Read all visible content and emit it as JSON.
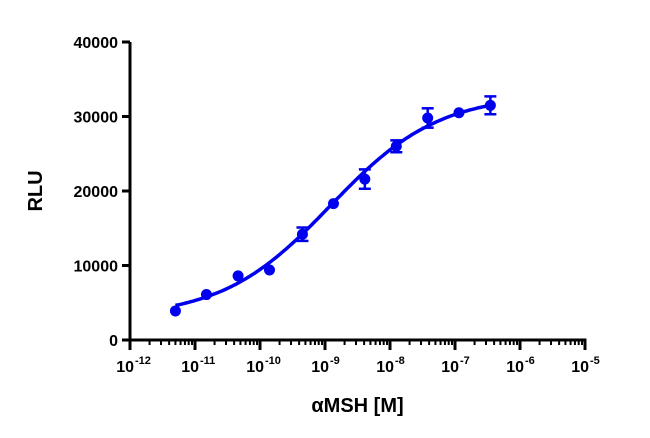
{
  "chart_data": {
    "type": "scatter",
    "title": "",
    "xlabel": "αMSH [M]",
    "ylabel": "RLU",
    "x_scale": "log",
    "xlim": [
      1e-12,
      1e-05
    ],
    "ylim": [
      0,
      40000
    ],
    "y_ticks": [
      0,
      10000,
      20000,
      30000,
      40000
    ],
    "y_tick_labels": [
      "0",
      "10000",
      "20000",
      "30000",
      "40000"
    ],
    "x_ticks": [
      {
        "base": "10",
        "exp": "-12"
      },
      {
        "base": "10",
        "exp": "-11"
      },
      {
        "base": "10",
        "exp": "-10"
      },
      {
        "base": "10",
        "exp": "-9"
      },
      {
        "base": "10",
        "exp": "-8"
      },
      {
        "base": "10",
        "exp": "-7"
      },
      {
        "base": "10",
        "exp": "-6"
      },
      {
        "base": "10",
        "exp": "-5"
      }
    ],
    "grid": false,
    "color": "#0000ee",
    "points": [
      {
        "x": 5e-12,
        "y": 3900,
        "err": 0
      },
      {
        "x": 1.5e-11,
        "y": 6100,
        "err": 0
      },
      {
        "x": 4.6e-11,
        "y": 8600,
        "err": 0
      },
      {
        "x": 1.4e-10,
        "y": 9400,
        "err": 0
      },
      {
        "x": 4.5e-10,
        "y": 14200,
        "err": 900
      },
      {
        "x": 1.35e-09,
        "y": 18300,
        "err": 0
      },
      {
        "x": 4.1e-09,
        "y": 21600,
        "err": 1300
      },
      {
        "x": 1.25e-08,
        "y": 26000,
        "err": 800
      },
      {
        "x": 3.8e-08,
        "y": 29800,
        "err": 1300
      },
      {
        "x": 1.15e-07,
        "y": 30500,
        "err": 0
      },
      {
        "x": 3.5e-07,
        "y": 31500,
        "err": 1200
      }
    ],
    "fit": {
      "model": "four-parameter logistic",
      "bottom": 3000,
      "top": 33000,
      "log_ec50": -8.92,
      "hill": 0.52,
      "x_range": [
        5e-12,
        3.5e-07
      ]
    }
  }
}
